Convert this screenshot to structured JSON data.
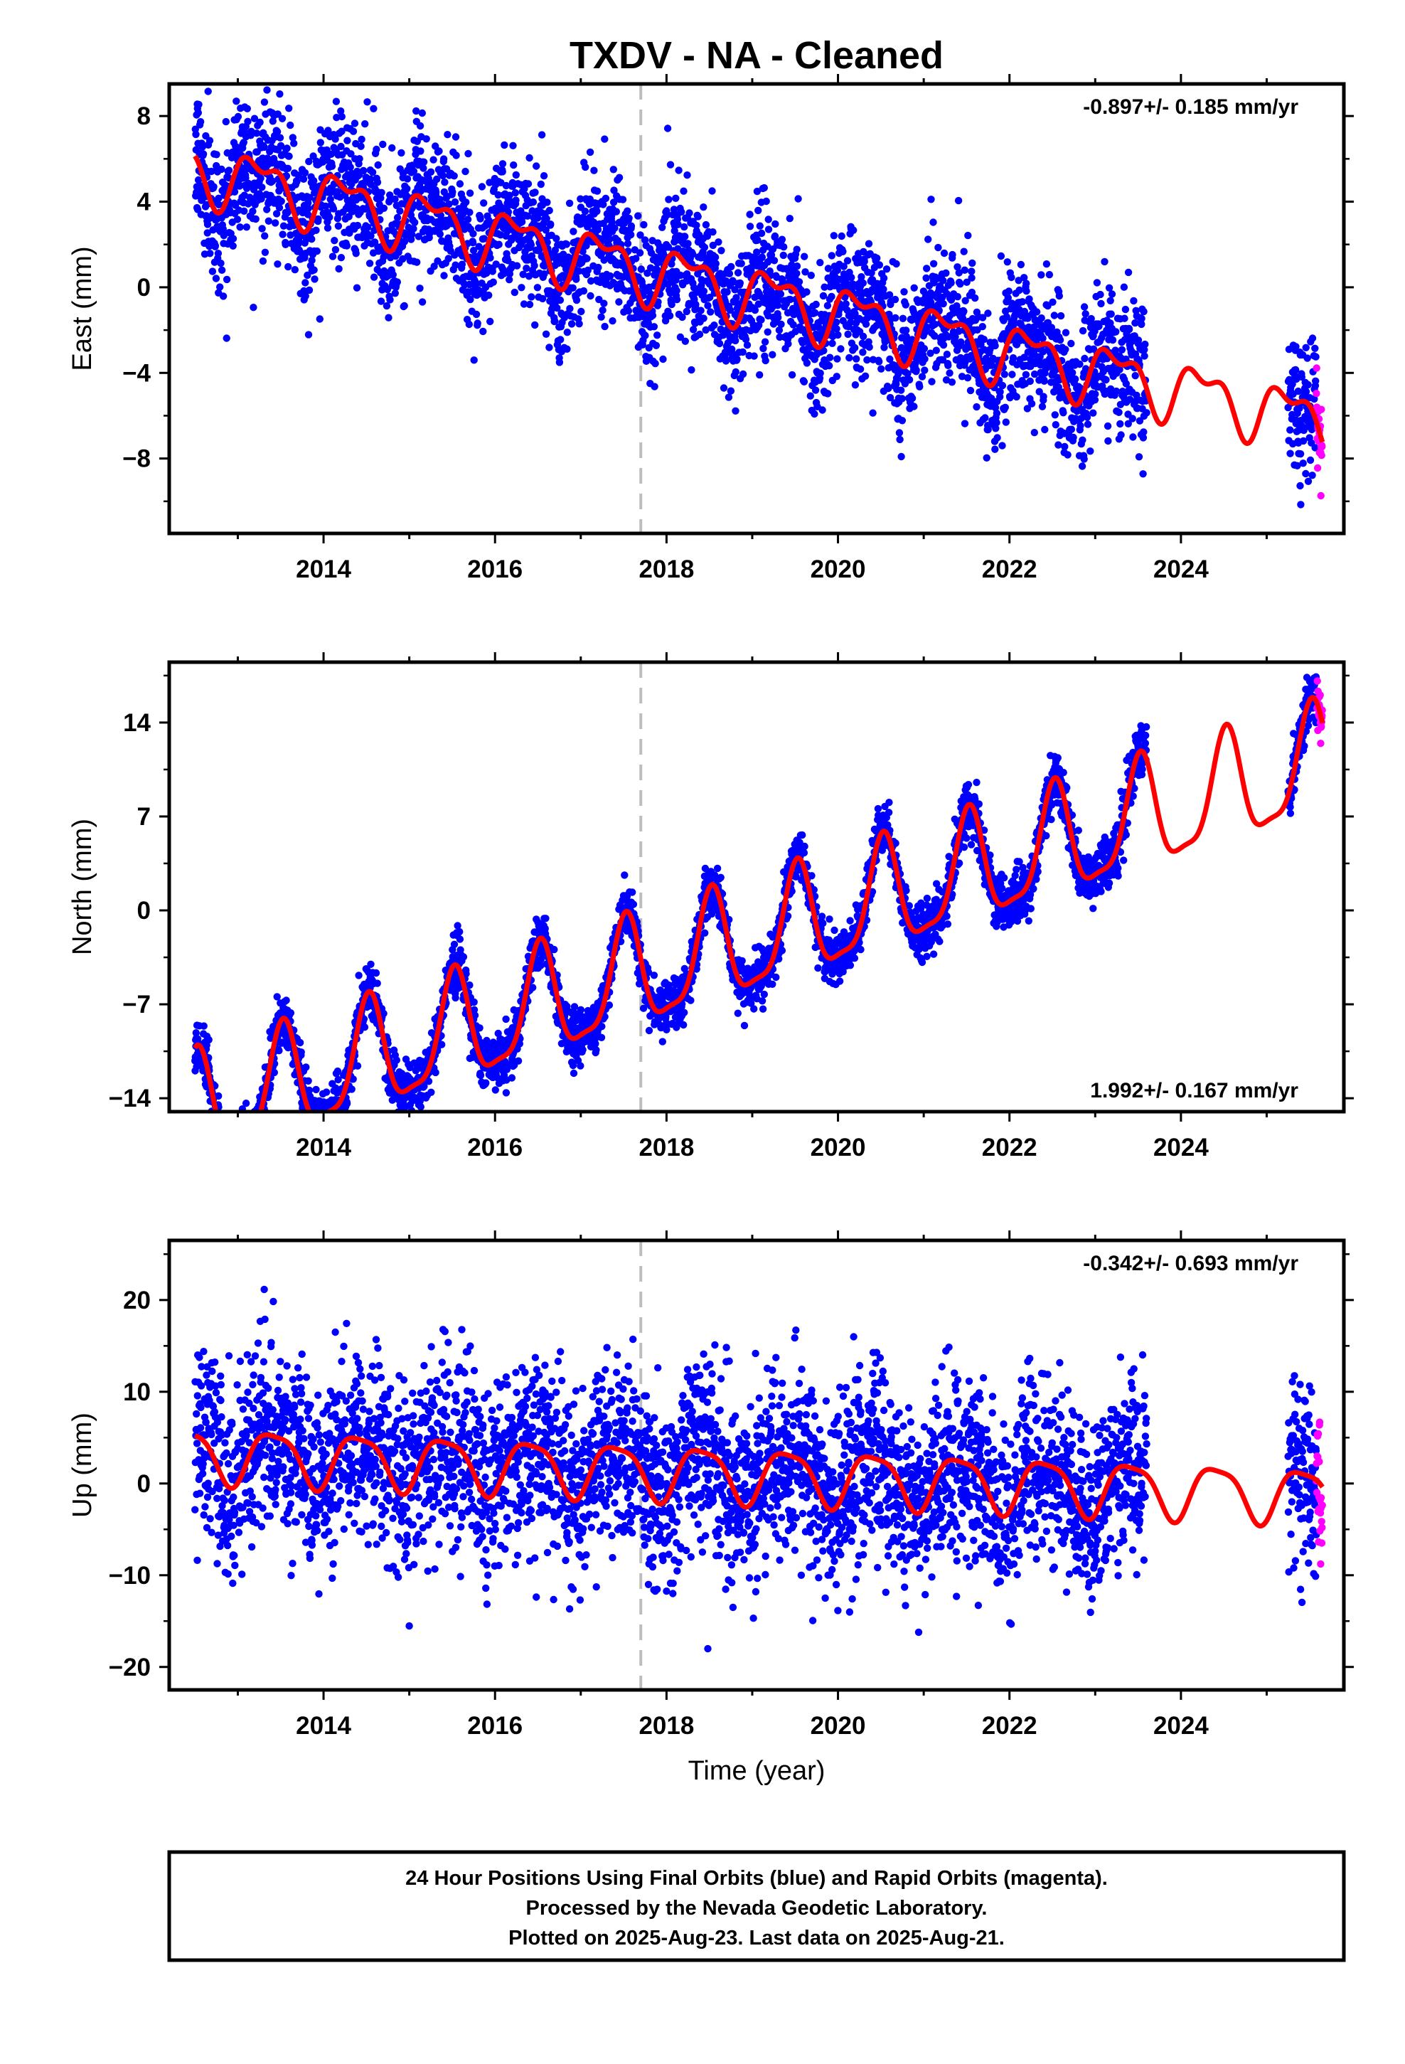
{
  "title": "TXDV  - NA - Cleaned",
  "colors": {
    "final_orbits": "#0000ff",
    "rapid_orbits": "#ff00ff",
    "model_fit": "#ff0000",
    "event_line": "#bdbdbd"
  },
  "footer": {
    "line1": "24 Hour Positions Using Final Orbits (blue) and Rapid Orbits (magenta).",
    "line2": "Processed by the Nevada Geodetic Laboratory.",
    "line3": "Plotted on 2025-Aug-23. Last data on 2025-Aug-21."
  },
  "chart_data": [
    {
      "type": "scatter",
      "component": "East",
      "ylabel": "East (mm)",
      "rate_label": "-0.897+/- 0.185 mm/yr",
      "rate_placement": "top-right",
      "xlim": [
        2012.2,
        2025.9
      ],
      "ylim": [
        -11.5,
        9.5
      ],
      "x_ticks": [
        2014,
        2016,
        2018,
        2020,
        2022,
        2024
      ],
      "y_ticks": [
        8,
        4,
        0,
        -4,
        -8
      ],
      "event_line_x": 2017.7,
      "grid": false,
      "data_span_final": [
        2012.5,
        2023.6
      ],
      "data_span_final_late": [
        2025.25,
        2025.58
      ],
      "data_span_rapid": [
        2025.58,
        2025.65
      ],
      "model": {
        "t0": 2019.0,
        "offset": -0.3,
        "rate": -0.897,
        "annual_sin": 1.2,
        "annual_cos": 0.0,
        "semiannual_sin": 0.2,
        "semiannual_cos": 0.6,
        "scatter_sigma": 1.6
      }
    },
    {
      "type": "scatter",
      "component": "North",
      "ylabel": "North (mm)",
      "rate_label": "1.992+/- 0.167 mm/yr",
      "rate_placement": "bottom-right",
      "xlim": [
        2012.2,
        2025.9
      ],
      "ylim": [
        -15,
        18.5
      ],
      "x_ticks": [
        2014,
        2016,
        2018,
        2020,
        2022,
        2024
      ],
      "y_ticks": [
        14,
        7,
        0,
        -7,
        -14
      ],
      "event_line_x": 2017.7,
      "grid": false,
      "data_span_final": [
        2012.5,
        2023.6
      ],
      "data_span_final_late": [
        2025.25,
        2025.58
      ],
      "data_span_rapid": [
        2025.58,
        2025.65
      ],
      "model": {
        "t0": 2019.0,
        "offset": -2.3,
        "rate": 1.992,
        "annual_sin": -0.6,
        "annual_cos": -4.0,
        "semiannual_sin": 0.5,
        "semiannual_cos": 1.0,
        "scatter_sigma": 1.0
      }
    },
    {
      "type": "scatter",
      "component": "Up",
      "ylabel": "Up (mm)",
      "rate_label": "-0.342+/- 0.693 mm/yr",
      "rate_placement": "top-right",
      "xlim": [
        2012.2,
        2025.9
      ],
      "ylim": [
        -22.5,
        26.5
      ],
      "x_ticks": [
        2014,
        2016,
        2018,
        2020,
        2022,
        2024
      ],
      "y_ticks": [
        20,
        10,
        0,
        -10,
        -20
      ],
      "xlabel": "Time (year)",
      "event_line_x": 2017.7,
      "grid": false,
      "data_span_final": [
        2012.5,
        2023.6
      ],
      "data_span_final_late": [
        2025.25,
        2025.58
      ],
      "data_span_rapid": [
        2025.58,
        2025.65
      ],
      "model": {
        "t0": 2019.0,
        "offset": 1.0,
        "rate": -0.342,
        "annual_sin": 1.5,
        "annual_cos": -2.5,
        "semiannual_sin": 0.5,
        "semiannual_cos": -0.5,
        "scatter_sigma": 5.0
      }
    }
  ]
}
